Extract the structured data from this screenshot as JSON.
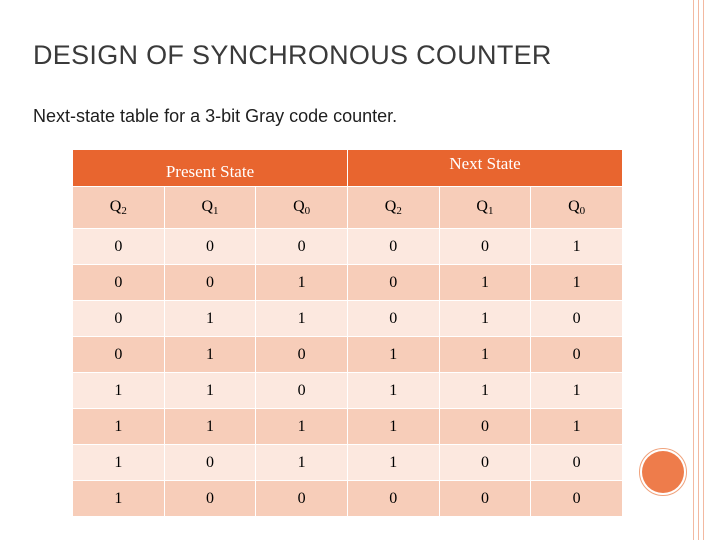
{
  "slide": {
    "title": "DESIGN OF SYNCHRONOUS COUNTER",
    "subtitle": "Next-state table for a 3-bit Gray code counter."
  },
  "table": {
    "group_headers": [
      "Present State",
      "Next State"
    ],
    "columns": [
      {
        "base": "Q",
        "sub": "2"
      },
      {
        "base": "Q",
        "sub": "1"
      },
      {
        "base": "Q",
        "sub": "0"
      },
      {
        "base": "Q",
        "sub": "2"
      },
      {
        "base": "Q",
        "sub": "1"
      },
      {
        "base": "Q",
        "sub": "0"
      }
    ],
    "rows": [
      [
        "0",
        "0",
        "0",
        "0",
        "0",
        "1"
      ],
      [
        "0",
        "0",
        "1",
        "0",
        "1",
        "1"
      ],
      [
        "0",
        "1",
        "1",
        "0",
        "1",
        "0"
      ],
      [
        "0",
        "1",
        "0",
        "1",
        "1",
        "0"
      ],
      [
        "1",
        "1",
        "0",
        "1",
        "1",
        "1"
      ],
      [
        "1",
        "1",
        "1",
        "1",
        "0",
        "1"
      ],
      [
        "1",
        "0",
        "1",
        "1",
        "0",
        "0"
      ],
      [
        "1",
        "0",
        "0",
        "0",
        "0",
        "0"
      ]
    ]
  },
  "theme": {
    "header_color": "#e8652f",
    "row_light": "#fce8df",
    "row_dark": "#f7cdb9",
    "accent_dot": "#ee7c4b"
  }
}
